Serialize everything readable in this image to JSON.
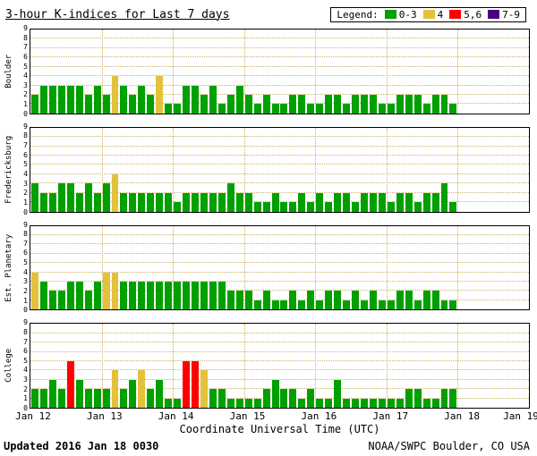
{
  "header": {
    "legend_label": "Legend:"
  },
  "chart_data": {
    "type": "bar",
    "title": "3-hour K-indices for Last 7 days",
    "xlabel": "Coordinate Universal Time (UTC)",
    "ylim": [
      0,
      9
    ],
    "y_ticks": [
      0,
      1,
      2,
      3,
      4,
      5,
      6,
      7,
      8,
      9
    ],
    "x_tick_labels": [
      "Jan 12",
      "Jan 13",
      "Jan 14",
      "Jan 15",
      "Jan 16",
      "Jan 17",
      "Jan 18",
      "Jan 19"
    ],
    "days": 7,
    "bars_per_day": 8,
    "grid": "dotted",
    "grid_color": "#c9b264",
    "legend_position": "top-right",
    "legend": [
      {
        "label": "0-3",
        "color": "#00a000"
      },
      {
        "label": "4",
        "color": "#e3c13d"
      },
      {
        "label": "5,6",
        "color": "#ff0000"
      },
      {
        "label": "7-9",
        "color": "#4b0082"
      }
    ],
    "series": [
      {
        "name": "Boulder",
        "values": [
          2,
          3,
          3,
          3,
          3,
          3,
          2,
          3,
          2,
          4,
          3,
          2,
          3,
          2,
          4,
          1,
          1,
          3,
          3,
          2,
          3,
          1,
          2,
          3,
          2,
          1,
          2,
          1,
          1,
          2,
          2,
          1,
          1,
          2,
          2,
          1,
          2,
          2,
          2,
          1,
          1,
          2,
          2,
          2,
          1,
          2,
          2,
          1
        ]
      },
      {
        "name": "Fredericksburg",
        "values": [
          3,
          2,
          2,
          3,
          3,
          2,
          3,
          2,
          3,
          4,
          2,
          2,
          2,
          2,
          2,
          2,
          1,
          2,
          2,
          2,
          2,
          2,
          3,
          2,
          2,
          1,
          1,
          2,
          1,
          1,
          2,
          1,
          2,
          1,
          2,
          2,
          1,
          2,
          2,
          2,
          1,
          2,
          2,
          1,
          2,
          2,
          3,
          1
        ]
      },
      {
        "name": "Est. Planetary",
        "values": [
          4,
          3,
          2,
          2,
          3,
          3,
          2,
          3,
          4,
          4,
          3,
          3,
          3,
          3,
          3,
          3,
          3,
          3,
          3,
          3,
          3,
          3,
          2,
          2,
          2,
          1,
          2,
          1,
          1,
          2,
          1,
          2,
          1,
          2,
          2,
          1,
          2,
          1,
          2,
          1,
          1,
          2,
          2,
          1,
          2,
          2,
          1,
          1
        ]
      },
      {
        "name": "College",
        "values": [
          2,
          2,
          3,
          2,
          5,
          3,
          2,
          2,
          2,
          4,
          2,
          3,
          4,
          2,
          3,
          1,
          1,
          5,
          5,
          4,
          2,
          2,
          1,
          1,
          1,
          1,
          2,
          3,
          2,
          2,
          1,
          2,
          1,
          1,
          3,
          1,
          1,
          1,
          1,
          1,
          1,
          1,
          2,
          2,
          1,
          1,
          2,
          2
        ]
      }
    ]
  },
  "footer": {
    "updated_label": "Updated",
    "updated_value": "2016 Jan 18 0030",
    "source": "NOAA/SWPC Boulder, CO USA"
  }
}
